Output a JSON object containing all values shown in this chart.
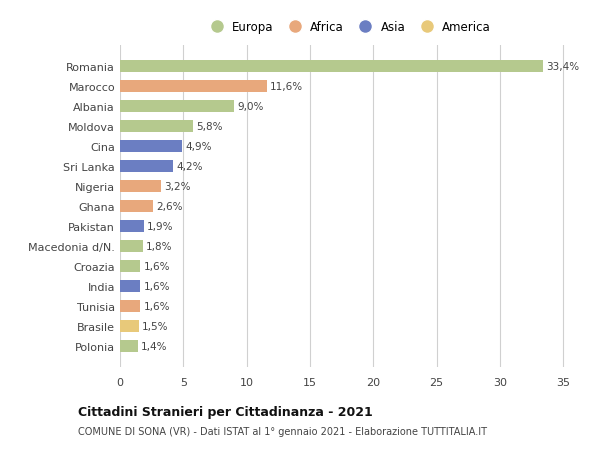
{
  "countries": [
    "Polonia",
    "Brasile",
    "Tunisia",
    "India",
    "Croazia",
    "Macedonia d/N.",
    "Pakistan",
    "Ghana",
    "Nigeria",
    "Sri Lanka",
    "Cina",
    "Moldova",
    "Albania",
    "Marocco",
    "Romania"
  ],
  "values": [
    1.4,
    1.5,
    1.6,
    1.6,
    1.6,
    1.8,
    1.9,
    2.6,
    3.2,
    4.2,
    4.9,
    5.8,
    9.0,
    11.6,
    33.4
  ],
  "labels": [
    "1,4%",
    "1,5%",
    "1,6%",
    "1,6%",
    "1,6%",
    "1,8%",
    "1,9%",
    "2,6%",
    "3,2%",
    "4,2%",
    "4,9%",
    "5,8%",
    "9,0%",
    "11,6%",
    "33,4%"
  ],
  "colors": [
    "#b5c98e",
    "#e8c97a",
    "#e8a87c",
    "#6b7ec2",
    "#b5c98e",
    "#b5c98e",
    "#6b7ec2",
    "#e8a87c",
    "#e8a87c",
    "#6b7ec2",
    "#6b7ec2",
    "#b5c98e",
    "#b5c98e",
    "#e8a87c",
    "#b5c98e"
  ],
  "legend_labels": [
    "Europa",
    "Africa",
    "Asia",
    "America"
  ],
  "legend_colors": [
    "#b5c98e",
    "#e8a87c",
    "#6b7ec2",
    "#e8c97a"
  ],
  "title": "Cittadini Stranieri per Cittadinanza - 2021",
  "subtitle": "COMUNE DI SONA (VR) - Dati ISTAT al 1° gennaio 2021 - Elaborazione TUTTITALIA.IT",
  "xlim": [
    0,
    36
  ],
  "xticks": [
    0,
    5,
    10,
    15,
    20,
    25,
    30,
    35
  ],
  "bg_color": "#ffffff",
  "grid_color": "#d0d0d0",
  "bar_height": 0.6
}
